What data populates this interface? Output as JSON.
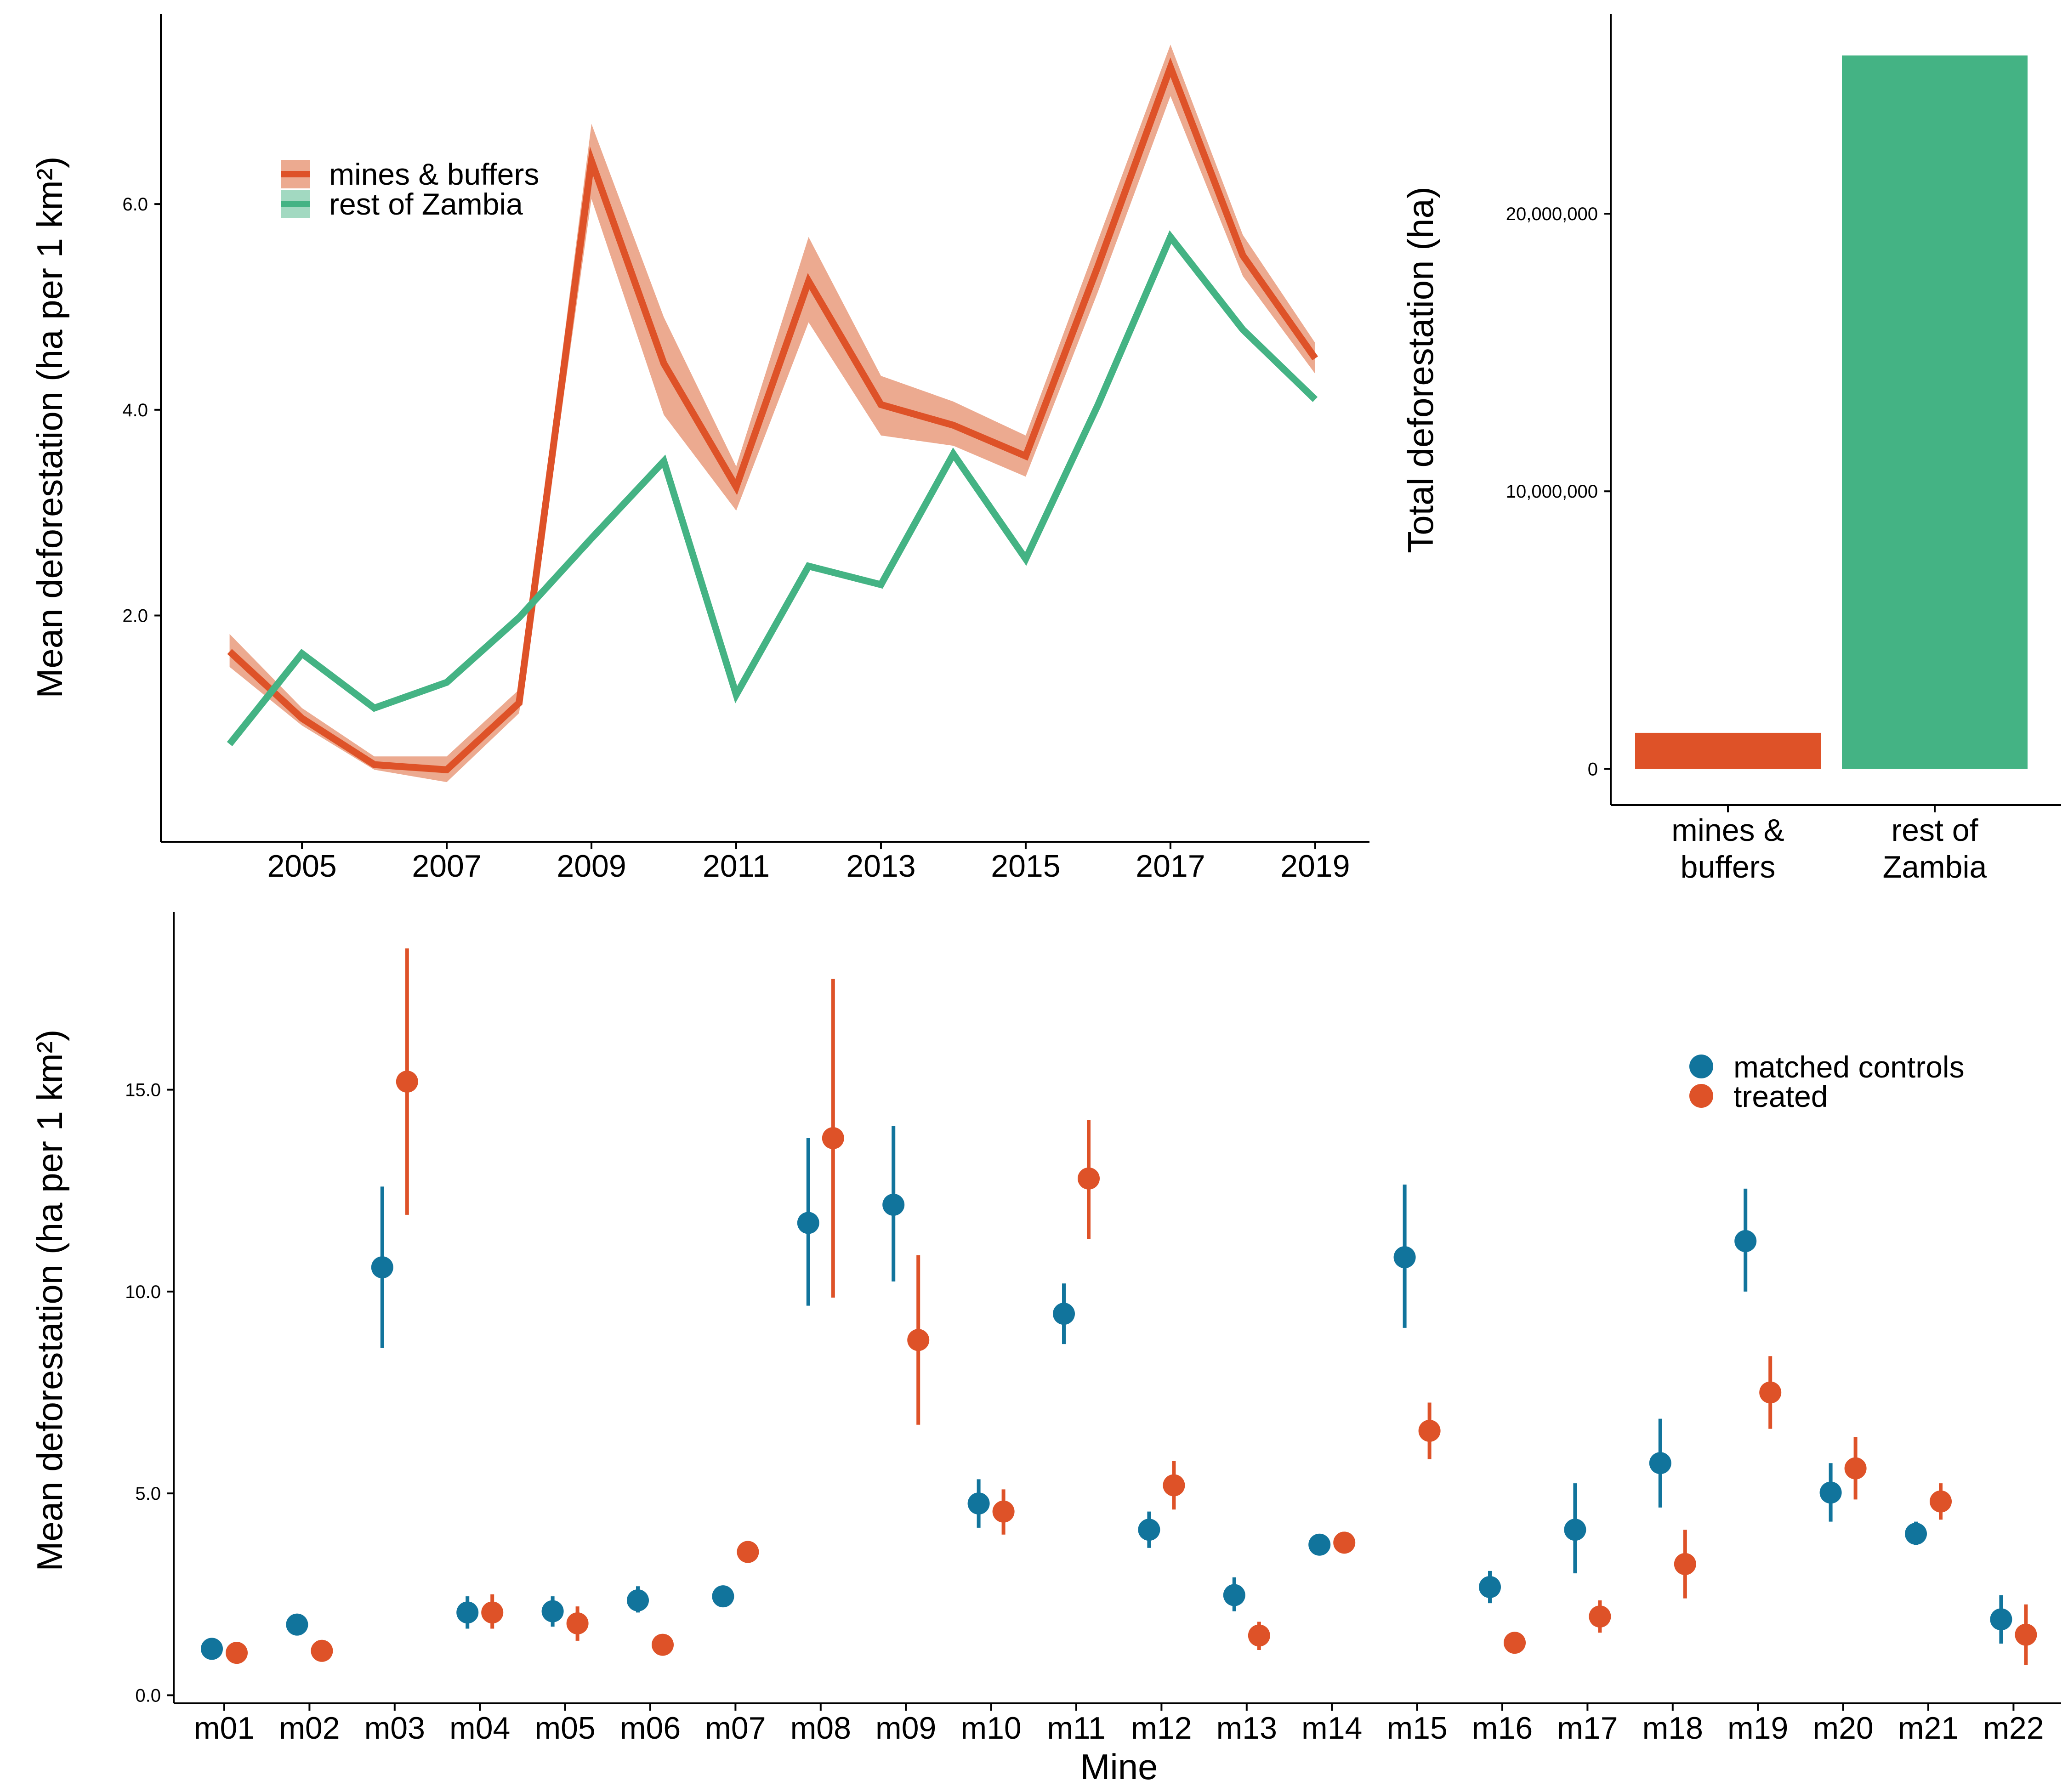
{
  "colors": {
    "mines": "#de5228",
    "mines_band": "#ecaa90",
    "rest": "#44b384",
    "controls": "#11749c",
    "treated": "#de5228"
  },
  "chart_data": [
    {
      "id": "top_left",
      "type": "line",
      "title": "",
      "xlabel": "",
      "ylabel": "Mean deforestation  (ha per 1 km²)",
      "xlim": [
        2003.05,
        2019.75
      ],
      "ylim": [
        -0.2,
        7.85
      ],
      "xticks": [
        2005,
        2007,
        2009,
        2011,
        2013,
        2015,
        2017,
        2019
      ],
      "yticks": [
        {
          "value": 2.0,
          "label": "2.0"
        },
        {
          "value": 4.0,
          "label": "4.0"
        },
        {
          "value": 6.0,
          "label": "6.0"
        }
      ],
      "legend_position": "top-left",
      "x": [
        2004,
        2005,
        2006,
        2007,
        2008,
        2009,
        2010,
        2011,
        2012,
        2013,
        2014,
        2015,
        2016,
        2017,
        2018,
        2019
      ],
      "series": [
        {
          "name": "mines & buffers",
          "color_key": "mines",
          "values": [
            1.65,
            1.0,
            0.55,
            0.5,
            1.15,
            6.42,
            4.45,
            3.25,
            5.25,
            4.05,
            3.85,
            3.55,
            5.4,
            7.33,
            5.5,
            4.5
          ],
          "lower": [
            1.5,
            0.93,
            0.5,
            0.38,
            1.05,
            6.05,
            3.95,
            3.02,
            4.85,
            3.75,
            3.65,
            3.35,
            5.15,
            7.05,
            5.3,
            4.35
          ],
          "upper": [
            1.82,
            1.1,
            0.63,
            0.63,
            1.28,
            6.78,
            4.9,
            3.45,
            5.68,
            4.33,
            4.08,
            3.75,
            5.65,
            7.55,
            5.7,
            4.65
          ]
        },
        {
          "name": "rest of Zambia",
          "color_key": "rest",
          "values": [
            0.75,
            1.63,
            1.1,
            1.35,
            1.98,
            2.75,
            3.5,
            1.23,
            2.48,
            2.3,
            3.57,
            2.55,
            4.05,
            5.68,
            4.78,
            4.1
          ]
        }
      ]
    },
    {
      "id": "top_right",
      "type": "bar",
      "title": "",
      "xlabel": "",
      "ylabel": "Total deforestation (ha)",
      "ylim": [
        -1300000,
        27200000
      ],
      "categories": [
        "mines &\nbuffers",
        "rest of\nZambia"
      ],
      "values": [
        1300000,
        25700000
      ],
      "color_keys": [
        "mines",
        "rest"
      ],
      "yticks": [
        {
          "value": 0,
          "label": "0"
        },
        {
          "value": 10000000,
          "label": "10,000,000"
        },
        {
          "value": 20000000,
          "label": "20,000,000"
        }
      ]
    },
    {
      "id": "bottom",
      "type": "scatter",
      "title": "",
      "xlabel": "Mine",
      "ylabel": "Mean deforestation  (ha per 1 km²)",
      "ylim": [
        -0.2,
        19.4
      ],
      "legend_position": "top-right",
      "categories": [
        "m01",
        "m02",
        "m03",
        "m04",
        "m05",
        "m06",
        "m07",
        "m08",
        "m09",
        "m10",
        "m11",
        "m12",
        "m13",
        "m14",
        "m15",
        "m16",
        "m17",
        "m18",
        "m19",
        "m20",
        "m21",
        "m22"
      ],
      "yticks": [
        {
          "value": 0.0,
          "label": "0.0"
        },
        {
          "value": 5.0,
          "label": "5.0"
        },
        {
          "value": 10.0,
          "label": "10.0"
        },
        {
          "value": 15.0,
          "label": "15.0"
        }
      ],
      "series": [
        {
          "name": "matched controls",
          "color_key": "controls",
          "values": [
            1.15,
            1.75,
            10.6,
            2.05,
            2.08,
            2.35,
            2.45,
            11.7,
            12.15,
            4.75,
            9.45,
            4.1,
            2.48,
            3.73,
            10.85,
            2.68,
            4.1,
            5.75,
            11.25,
            5.02,
            4.0,
            1.88
          ],
          "lower": [
            null,
            null,
            8.6,
            1.65,
            1.7,
            2.05,
            null,
            9.65,
            10.25,
            4.15,
            8.7,
            3.65,
            2.08,
            null,
            9.1,
            2.28,
            3.02,
            4.65,
            10.0,
            4.3,
            3.72,
            1.28
          ],
          "upper": [
            null,
            null,
            12.6,
            2.45,
            2.45,
            2.7,
            null,
            13.8,
            14.1,
            5.35,
            10.2,
            4.55,
            2.92,
            null,
            12.65,
            3.08,
            5.25,
            6.85,
            12.55,
            5.75,
            4.3,
            2.48
          ]
        },
        {
          "name": "treated",
          "color_key": "treated",
          "values": [
            1.05,
            1.1,
            15.2,
            2.05,
            1.78,
            1.25,
            3.55,
            13.8,
            8.8,
            4.55,
            12.8,
            5.2,
            1.48,
            3.78,
            6.55,
            1.3,
            1.95,
            3.25,
            7.5,
            5.62,
            4.8,
            1.5
          ],
          "lower": [
            null,
            null,
            11.9,
            1.65,
            1.35,
            null,
            null,
            9.85,
            6.7,
            3.98,
            11.3,
            4.6,
            1.12,
            3.52,
            5.85,
            null,
            1.55,
            2.4,
            6.6,
            4.85,
            4.35,
            0.75
          ],
          "upper": [
            null,
            null,
            18.5,
            2.5,
            2.2,
            null,
            null,
            17.75,
            10.9,
            5.1,
            14.25,
            5.8,
            1.82,
            4.05,
            7.25,
            null,
            2.35,
            4.1,
            8.4,
            6.4,
            5.25,
            2.25
          ]
        }
      ]
    }
  ]
}
